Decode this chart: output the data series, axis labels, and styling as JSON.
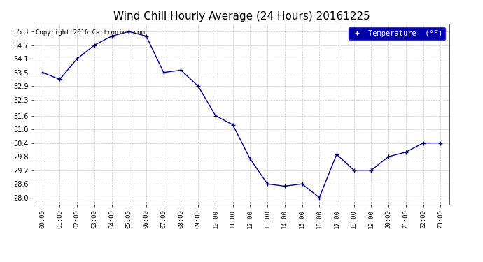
{
  "title": "Wind Chill Hourly Average (24 Hours) 20161225",
  "copyright": "Copyright 2016 Cartronics.com",
  "legend_label": "Temperature  (°F)",
  "hours": [
    "00:00",
    "01:00",
    "02:00",
    "03:00",
    "04:00",
    "05:00",
    "06:00",
    "07:00",
    "08:00",
    "09:00",
    "10:00",
    "11:00",
    "12:00",
    "13:00",
    "14:00",
    "15:00",
    "16:00",
    "17:00",
    "18:00",
    "19:00",
    "20:00",
    "21:00",
    "22:00",
    "23:00"
  ],
  "values": [
    33.5,
    33.2,
    34.1,
    34.7,
    35.1,
    35.3,
    35.1,
    33.5,
    33.6,
    32.9,
    31.6,
    31.2,
    29.7,
    28.6,
    28.5,
    28.6,
    28.0,
    29.9,
    29.2,
    29.2,
    29.8,
    30.0,
    30.4,
    30.4
  ],
  "ylim": [
    27.7,
    35.65
  ],
  "yticks": [
    28.0,
    28.6,
    29.2,
    29.8,
    30.4,
    31.0,
    31.6,
    32.3,
    32.9,
    33.5,
    34.1,
    34.7,
    35.3
  ],
  "line_color": "#00008b",
  "marker": "+",
  "marker_color": "#000055",
  "bg_color": "#ffffff",
  "grid_color": "#bbbbbb",
  "title_fontsize": 11,
  "legend_bg": "#0000aa",
  "legend_fg": "#ffffff",
  "fig_width": 6.9,
  "fig_height": 3.75,
  "fig_dpi": 100
}
